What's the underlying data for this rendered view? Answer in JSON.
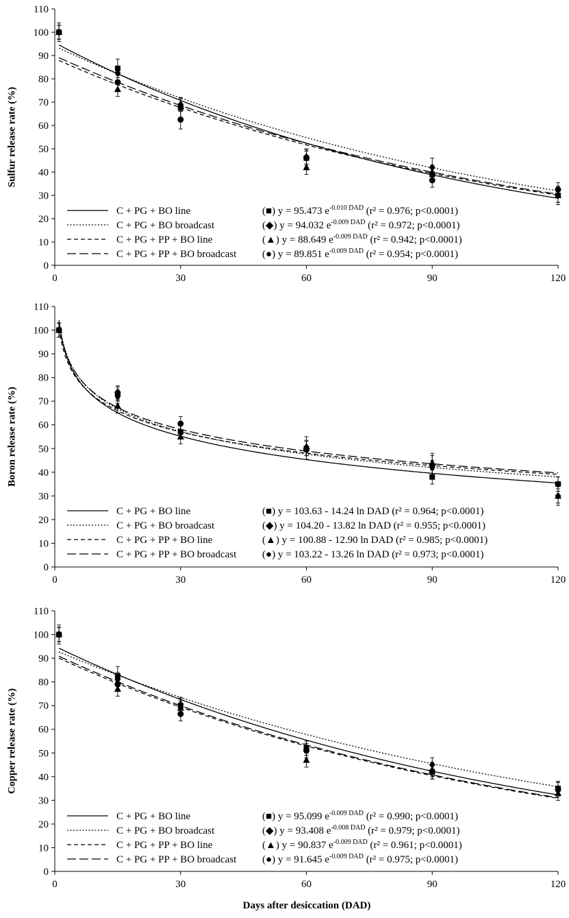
{
  "chart_data": [
    {
      "type": "scatter",
      "ylabel": "Sulfur release rate (%)",
      "xlim": [
        0,
        120
      ],
      "ylim": [
        0,
        110
      ],
      "xticks": [
        "0",
        "30",
        "60",
        "90",
        "120"
      ],
      "yticks": [
        "0",
        "10",
        "20",
        "30",
        "40",
        "50",
        "60",
        "70",
        "80",
        "90",
        "100",
        "110"
      ],
      "x": [
        1,
        15,
        30,
        60,
        90,
        120
      ],
      "model": "exp",
      "series": [
        {
          "name": "C + PG + BO line",
          "marker": "square",
          "dash": "",
          "values": [
            100,
            84.5,
            67.5,
            46,
            39,
            30
          ],
          "errors": [
            4,
            4,
            4,
            4,
            3,
            4
          ],
          "coef": [
            95.473,
            0.01
          ],
          "eq": {
            "sym": "■",
            "pre": "y = 95.473 e",
            "sup": "-0.010 DAD",
            "post": " (r² = 0.976; p<0.0001)"
          }
        },
        {
          "name": "C + PG + BO broadcast",
          "marker": "diamond",
          "dash": "2,2.5",
          "values": [
            100,
            82.5,
            69,
            46.5,
            42,
            30
          ],
          "errors": [
            3,
            3,
            3,
            3,
            4,
            3
          ],
          "coef": [
            94.032,
            0.009
          ],
          "eq": {
            "sym": "◆",
            "pre": "y = 94.032 e",
            "sup": "-0.009 DAD",
            "post": " (r² = 0.972; p<0.0001)"
          }
        },
        {
          "name": "C + PG + PP + BO line",
          "marker": "triangle",
          "dash": "6,4",
          "values": [
            100,
            75.5,
            69,
            42,
            40,
            30
          ],
          "errors": [
            3,
            3,
            3,
            3,
            3,
            3
          ],
          "coef": [
            88.649,
            0.009
          ],
          "eq": {
            "sym": "▲",
            "pre": "y = 88.649 e",
            "sup": "-0.009 DAD",
            "post": " (r² = 0.942; p<0.0001)"
          }
        },
        {
          "name": "C + PG + PP + BO broadcast",
          "marker": "circle",
          "dash": "13,5",
          "values": [
            100,
            78.5,
            62.5,
            46,
            36.5,
            32.5
          ],
          "errors": [
            3,
            3,
            4,
            3,
            3,
            3
          ],
          "coef": [
            89.851,
            0.009
          ],
          "eq": {
            "sym": "●",
            "pre": "y = 89.851 e",
            "sup": "-0.009 DAD",
            "post": " (r² = 0.954; p<0.0001)"
          }
        }
      ]
    },
    {
      "type": "scatter",
      "ylabel": "Boron release rate (%)",
      "xlim": [
        0,
        120
      ],
      "ylim": [
        0,
        110
      ],
      "xticks": [
        "0",
        "30",
        "60",
        "90",
        "120"
      ],
      "yticks": [
        "0",
        "10",
        "20",
        "30",
        "40",
        "50",
        "60",
        "70",
        "80",
        "90",
        "100",
        "110"
      ],
      "x": [
        1,
        15,
        30,
        60,
        90,
        120
      ],
      "model": "log",
      "series": [
        {
          "name": "C + PG + BO line",
          "marker": "square",
          "dash": "",
          "values": [
            100,
            73,
            57,
            50,
            38,
            35
          ],
          "errors": [
            3,
            3,
            3,
            3,
            3,
            3
          ],
          "coef": [
            103.63,
            14.24
          ],
          "eq": {
            "sym": "■",
            "pre": "y = 103.63 - 14.24 ln DAD",
            "sup": "",
            "post": " (r² = 0.964; p<0.0001)"
          }
        },
        {
          "name": "C + PG + BO broadcast",
          "marker": "diamond",
          "dash": "2,2.5",
          "values": [
            100,
            72,
            57,
            50,
            42,
            30
          ],
          "errors": [
            3,
            3,
            3,
            3,
            3,
            4
          ],
          "coef": [
            104.2,
            13.82
          ],
          "eq": {
            "sym": "◆",
            "pre": "y = 104.20 - 13.82 ln DAD",
            "sup": "",
            "post": " (r² = 0.955; p<0.0001)"
          }
        },
        {
          "name": "C + PG + PP + BO line",
          "marker": "triangle",
          "dash": "6,4",
          "values": [
            100,
            68,
            55,
            51,
            44,
            30
          ],
          "errors": [
            3,
            3,
            3,
            4,
            3,
            3
          ],
          "coef": [
            100.88,
            12.9
          ],
          "eq": {
            "sym": "▲",
            "pre": "y = 100.88 - 12.90 ln DAD",
            "sup": "",
            "post": " (r² = 0.985; p<0.0001)"
          }
        },
        {
          "name": "C + PG + PP + BO broadcast",
          "marker": "circle",
          "dash": "13,5",
          "values": [
            100,
            73.5,
            60.5,
            49.5,
            43,
            35
          ],
          "errors": [
            3,
            3,
            3,
            4,
            5,
            3
          ],
          "coef": [
            103.22,
            13.26
          ],
          "eq": {
            "sym": "●",
            "pre": "y = 103.22 - 13.26 ln DAD",
            "sup": "",
            "post": " (r² = 0.973; p<0.0001)"
          }
        }
      ]
    },
    {
      "type": "scatter",
      "ylabel": "Copper release rate (%)",
      "xlabel": "Days after desiccation (DAD)",
      "xlim": [
        0,
        120
      ],
      "ylim": [
        0,
        110
      ],
      "xticks": [
        "0",
        "30",
        "60",
        "90",
        "120"
      ],
      "yticks": [
        "0",
        "10",
        "20",
        "30",
        "40",
        "50",
        "60",
        "70",
        "80",
        "90",
        "100",
        "110"
      ],
      "x": [
        1,
        15,
        30,
        60,
        90,
        120
      ],
      "model": "exp",
      "series": [
        {
          "name": "C + PG + BO line",
          "marker": "square",
          "dash": "",
          "values": [
            100,
            82.5,
            70,
            52,
            42,
            35
          ],
          "errors": [
            4,
            4,
            3,
            3,
            3,
            3
          ],
          "coef": [
            95.099,
            0.009
          ],
          "eq": {
            "sym": "■",
            "pre": "y = 95.099 e",
            "sup": "-0.009 DAD",
            "post": " (r² = 0.990; p<0.0001)"
          }
        },
        {
          "name": "C + PG + BO broadcast",
          "marker": "diamond",
          "dash": "2,2.5",
          "values": [
            100,
            81,
            70.5,
            52,
            45,
            35
          ],
          "errors": [
            3,
            3,
            3,
            3,
            3,
            3
          ],
          "coef": [
            93.408,
            0.008
          ],
          "eq": {
            "sym": "◆",
            "pre": "y = 93.408 e",
            "sup": "-0.008 DAD",
            "post": " (r² = 0.979; p<0.0001)"
          }
        },
        {
          "name": "C + PG + PP + BO line",
          "marker": "triangle",
          "dash": "6,4",
          "values": [
            100,
            77,
            69,
            47,
            43,
            33
          ],
          "errors": [
            3,
            3,
            3,
            3,
            3,
            3
          ],
          "coef": [
            90.837,
            0.009
          ],
          "eq": {
            "sym": "▲",
            "pre": "y = 90.837 e",
            "sup": "-0.009 DAD",
            "post": " (r² = 0.961; p<0.0001)"
          }
        },
        {
          "name": "C + PG + PP + BO broadcast",
          "marker": "circle",
          "dash": "13,5",
          "values": [
            100,
            79,
            66.5,
            51,
            42,
            34.5
          ],
          "errors": [
            3,
            3,
            3,
            3,
            3,
            3
          ],
          "coef": [
            91.645,
            0.009
          ],
          "eq": {
            "sym": "●",
            "pre": "y = 91.645 e",
            "sup": "-0.009 DAD",
            "post": " (r² = 0.975; p<0.0001)"
          }
        }
      ]
    }
  ]
}
